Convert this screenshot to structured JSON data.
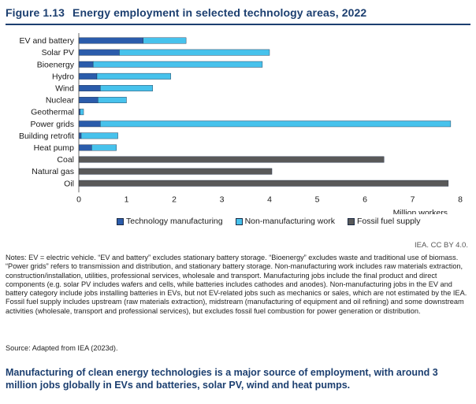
{
  "figure": {
    "number": "Figure 1.13",
    "title": "Energy employment in selected technology areas, 2022"
  },
  "chart_data": {
    "type": "bar",
    "orientation": "horizontal",
    "stacked": true,
    "categories": [
      "EV and battery",
      "Solar PV",
      "Bioenergy",
      "Hydro",
      "Wind",
      "Nuclear",
      "Geothermal",
      "Power grids",
      "Building retrofit",
      "Heat pump",
      "Coal",
      "Natural gas",
      "Oil"
    ],
    "series": [
      {
        "name": "Technology manufacturing",
        "color": "#2b5cab",
        "values": [
          1.35,
          0.85,
          0.3,
          0.38,
          0.45,
          0.4,
          0.03,
          0.45,
          0.05,
          0.27,
          0,
          0,
          0
        ]
      },
      {
        "name": "Non-manufacturing work",
        "color": "#47c2ec",
        "values": [
          0.9,
          3.15,
          3.55,
          1.55,
          1.1,
          0.6,
          0.07,
          7.35,
          0.77,
          0.52,
          0,
          0,
          0
        ]
      },
      {
        "name": "Fossil fuel supply",
        "color": "#595959",
        "values": [
          0,
          0,
          0,
          0,
          0,
          0,
          0,
          0,
          0,
          0,
          6.4,
          4.05,
          7.75
        ]
      }
    ],
    "xlabel": "Million workers",
    "ylabel": "",
    "xlim": [
      0,
      8
    ],
    "xticks": [
      0,
      1,
      2,
      3,
      4,
      5,
      6,
      7,
      8
    ],
    "grid": false,
    "legend_position": "bottom"
  },
  "credit": "IEA. CC BY 4.0.",
  "notes": "Notes: EV = electric vehicle. “EV and battery” excludes stationary battery storage. “Bioenergy” excludes waste and traditional use of biomass. “Power grids” refers to transmission and distribution, and stationary battery storage. Non-manufacturing work includes raw materials extraction, construction/installation, utilities, professional services, wholesale and transport. Manufacturing jobs include the final product and direct components (e.g. solar PV includes wafers and cells, while batteries includes cathodes and anodes). Non-manufacturing jobs in the EV and battery category include jobs installing batteries in EVs, but not EV-related jobs such as mechanics or sales, which are not estimated by the IEA. Fossil fuel supply includes upstream (raw materials extraction), midstream (manufacturing of equipment and oil refining) and some downstream activities (wholesale, transport and professional services), but excludes fossil fuel combustion for power generation or distribution.",
  "source": "Source: Adapted from IEA (2023d).",
  "takeaway": "Manufacturing of clean energy technologies is a major source of employment, with around 3 million jobs globally in EVs and batteries, solar PV, wind and heat pumps."
}
